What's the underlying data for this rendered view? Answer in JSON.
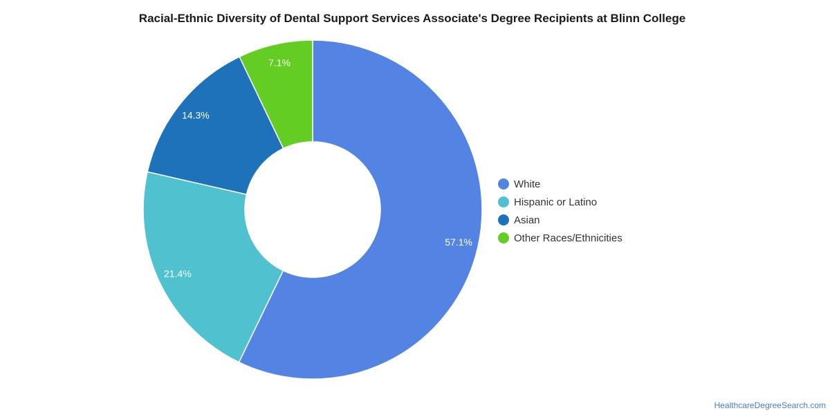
{
  "chart_data": {
    "type": "pie",
    "title": "Racial-Ethnic Diversity of Dental Support Services Associate's Degree Recipients at Blinn College",
    "donut": true,
    "legend_position": "right",
    "slices": [
      {
        "name": "White",
        "value": 57.1,
        "label": "57.1%",
        "color": "#5484E3"
      },
      {
        "name": "Hispanic or Latino",
        "value": 21.4,
        "label": "21.4%",
        "color": "#50C1CE"
      },
      {
        "name": "Asian",
        "value": 14.3,
        "label": "14.3%",
        "color": "#1D72BA"
      },
      {
        "name": "Other Races/Ethnicities",
        "value": 7.1,
        "label": "7.1%",
        "color": "#63CD24"
      }
    ]
  },
  "credit": {
    "text": "HealthcareDegreeSearch.com"
  }
}
